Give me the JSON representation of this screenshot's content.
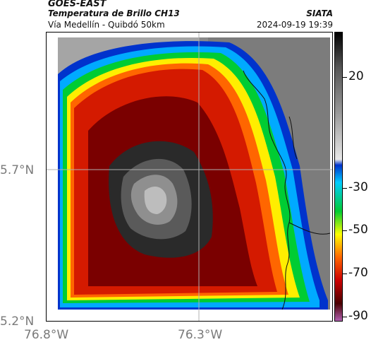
{
  "header": {
    "title_line1": "GOES-EAST",
    "title_line2": "Temperatura de Brillo CH13",
    "title_line3": "Vía Medellín - Quibdó 50km",
    "organization": "SIATA",
    "timestamp": "2024-09-19 19:39"
  },
  "axes": {
    "y_ticks": [
      "5.7°N",
      "5.2°N"
    ],
    "x_ticks": [
      "76.8°W",
      "76.3°W"
    ]
  },
  "colorbar": {
    "ticks": [
      "20",
      "-30",
      "-50",
      "-70",
      "-90"
    ],
    "colors": [
      "#000000",
      "#555555",
      "#9a9a9a",
      "#e8e8e8",
      "#0033cc",
      "#00ccff",
      "#00cc33",
      "#ffff00",
      "#ff6600",
      "#cc0000",
      "#4a0000",
      "#b060b0"
    ]
  }
}
